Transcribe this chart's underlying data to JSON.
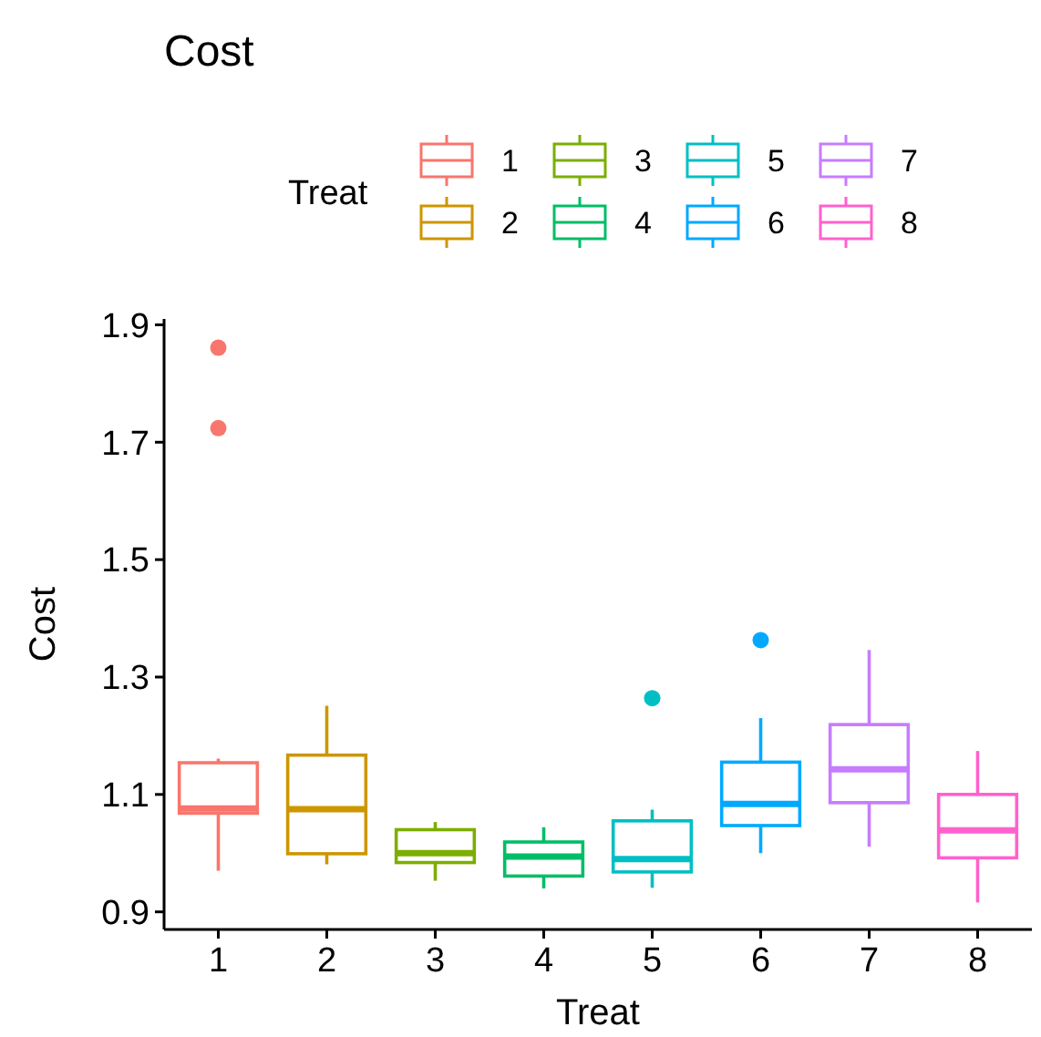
{
  "chart_data": {
    "type": "box",
    "title": "Cost",
    "xlabel": "Treat",
    "ylabel": "Cost",
    "legend_title": "Treat",
    "legend": "top",
    "grid": false,
    "categories": [
      "1",
      "2",
      "3",
      "4",
      "5",
      "6",
      "7",
      "8"
    ],
    "ylim": [
      0.87,
      1.91
    ],
    "yticks": [
      0.9,
      1.1,
      1.3,
      1.5,
      1.7,
      1.9
    ],
    "series": [
      {
        "name": "1",
        "color": "#f8766d",
        "boxes": [
          {
            "low": 0.97,
            "q1": 1.068,
            "median": 1.076,
            "q3": 1.154,
            "high": 1.161,
            "outliers": [
              1.724,
              1.861
            ]
          },
          null,
          null,
          null,
          null,
          null,
          null,
          null
        ]
      },
      {
        "name": "2",
        "color": "#cd9600",
        "boxes": [
          null,
          {
            "low": 0.981,
            "q1": 0.999,
            "median": 1.075,
            "q3": 1.167,
            "high": 1.251
          },
          null,
          null,
          null,
          null,
          null,
          null
        ]
      },
      {
        "name": "3",
        "color": "#7cae00",
        "boxes": [
          null,
          null,
          {
            "low": 0.953,
            "q1": 0.984,
            "median": 1.0,
            "q3": 1.04,
            "high": 1.053
          },
          null,
          null,
          null,
          null,
          null
        ]
      },
      {
        "name": "4",
        "color": "#00be67",
        "boxes": [
          null,
          null,
          null,
          {
            "low": 0.94,
            "q1": 0.961,
            "median": 0.994,
            "q3": 1.019,
            "high": 1.044
          },
          null,
          null,
          null,
          null
        ]
      },
      {
        "name": "5",
        "color": "#00bfc4",
        "boxes": [
          null,
          null,
          null,
          null,
          {
            "low": 0.941,
            "q1": 0.968,
            "median": 0.99,
            "q3": 1.055,
            "high": 1.074,
            "outliers": [
              1.264
            ]
          },
          null,
          null,
          null
        ]
      },
      {
        "name": "6",
        "color": "#00a9ff",
        "boxes": [
          null,
          null,
          null,
          null,
          null,
          {
            "low": 1.0,
            "q1": 1.047,
            "median": 1.084,
            "q3": 1.155,
            "high": 1.23,
            "outliers": [
              1.363
            ]
          },
          null,
          null
        ]
      },
      {
        "name": "7",
        "color": "#c77cff",
        "boxes": [
          null,
          null,
          null,
          null,
          null,
          null,
          {
            "low": 1.011,
            "q1": 1.086,
            "median": 1.143,
            "q3": 1.219,
            "high": 1.346
          },
          null
        ]
      },
      {
        "name": "8",
        "color": "#ff61cc",
        "boxes": [
          null,
          null,
          null,
          null,
          null,
          null,
          null,
          {
            "low": 0.916,
            "q1": 0.992,
            "median": 1.039,
            "q3": 1.1,
            "high": 1.174
          }
        ]
      }
    ]
  }
}
